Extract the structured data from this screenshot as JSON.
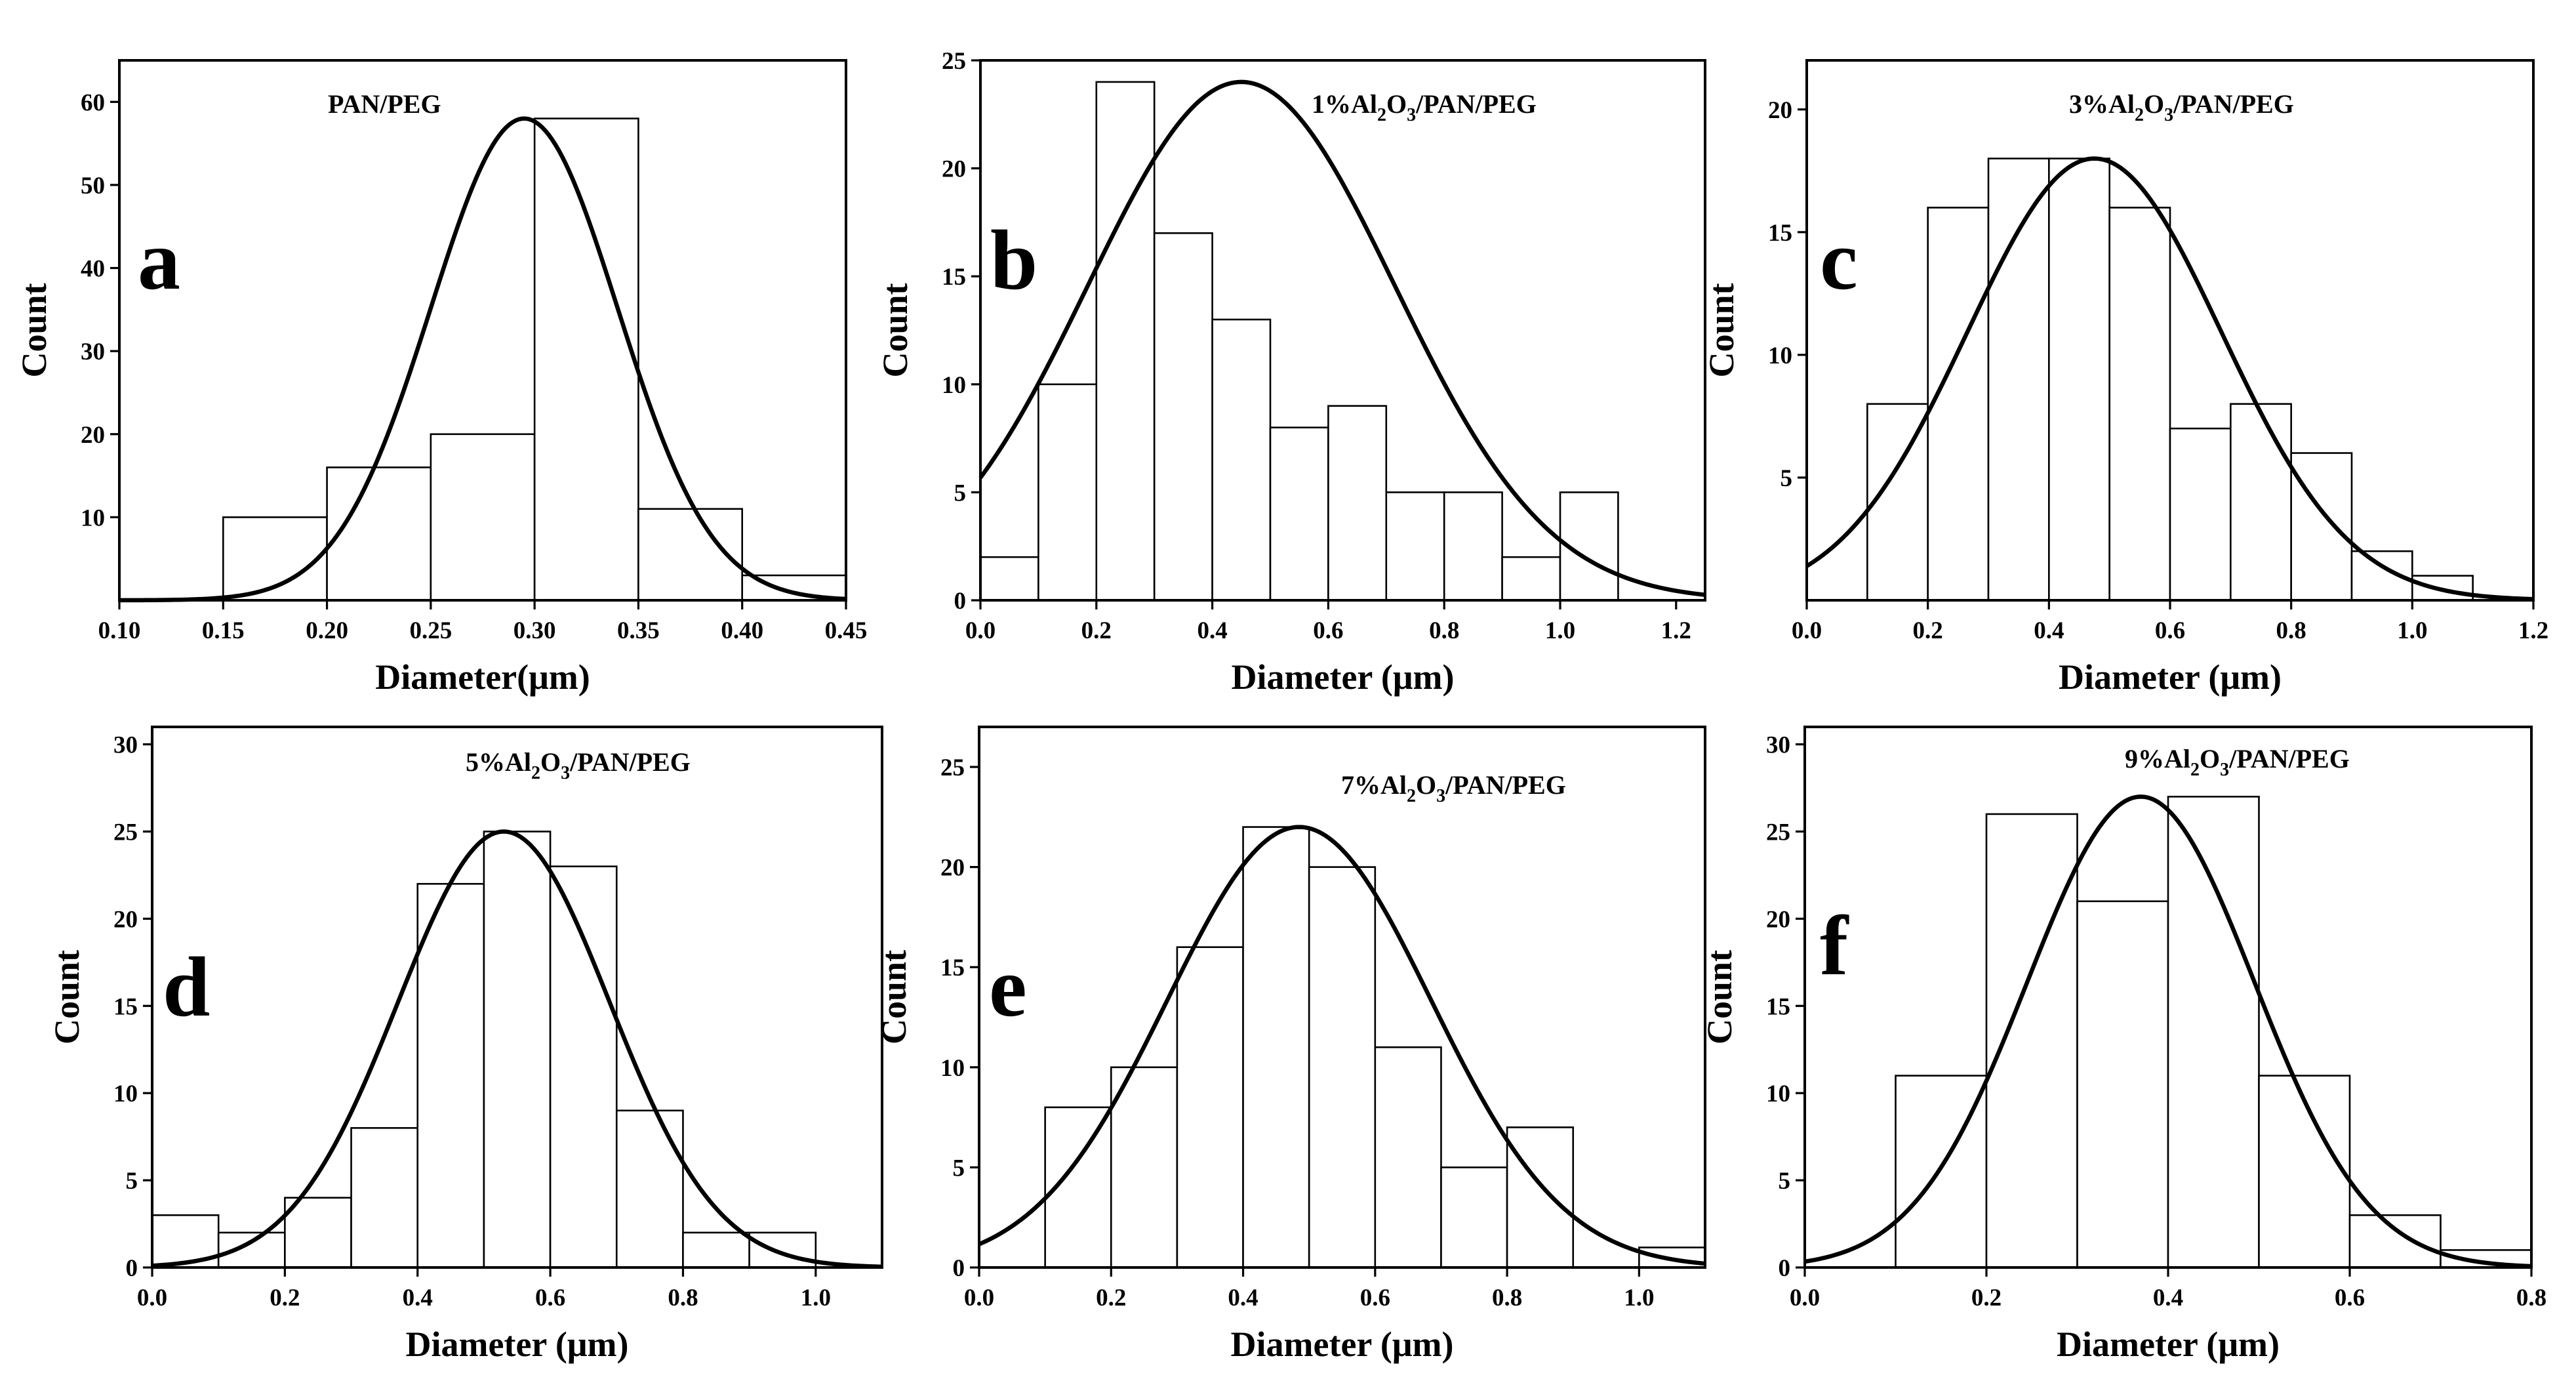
{
  "figure": {
    "kind": "diameter-distribution-histograms"
  },
  "chart_data": [
    {
      "type": "bar",
      "panel": "a",
      "title": "PAN/PEG",
      "title_parts": [
        {
          "t": "PAN/PEG",
          "sub": false
        }
      ],
      "xlabel": "Diameter(μm)",
      "ylabel": "Count",
      "xlim": [
        0.1,
        0.45
      ],
      "ylim": [
        0,
        65
      ],
      "xticks": [
        0.1,
        0.15,
        0.2,
        0.25,
        0.3,
        0.35,
        0.4,
        0.45
      ],
      "xtick_labels": [
        "0.10",
        "0.15",
        "0.20",
        "0.25",
        "0.30",
        "0.35",
        "0.40",
        "0.45"
      ],
      "yticks": [
        10,
        20,
        30,
        40,
        50,
        60
      ],
      "ytick_labels": [
        "10",
        "20",
        "30",
        "40",
        "50",
        "60"
      ],
      "bins": [
        [
          0.15,
          0.2
        ],
        [
          0.2,
          0.25
        ],
        [
          0.25,
          0.3
        ],
        [
          0.3,
          0.35
        ],
        [
          0.35,
          0.4
        ],
        [
          0.4,
          0.45
        ]
      ],
      "values": [
        10,
        16,
        20,
        58,
        11,
        3
      ],
      "fit": {
        "type": "gaussian",
        "peak": 58,
        "center": 0.295,
        "sigma": 0.045
      }
    },
    {
      "type": "bar",
      "panel": "b",
      "title": "1%Al2O3/PAN/PEG",
      "title_parts": [
        {
          "t": "1%Al",
          "sub": false
        },
        {
          "t": "2",
          "sub": true
        },
        {
          "t": "O",
          "sub": false
        },
        {
          "t": "3",
          "sub": true
        },
        {
          "t": "/PAN/PEG",
          "sub": false
        }
      ],
      "xlabel": "Diameter (μm)",
      "ylabel": "Count",
      "xlim": [
        0.0,
        1.25
      ],
      "ylim": [
        0,
        25
      ],
      "xticks": [
        0.0,
        0.2,
        0.4,
        0.6,
        0.8,
        1.0,
        1.2
      ],
      "xtick_labels": [
        "0.0",
        "0.2",
        "0.4",
        "0.6",
        "0.8",
        "1.0",
        "1.2"
      ],
      "yticks": [
        0,
        5,
        10,
        15,
        20,
        25
      ],
      "ytick_labels": [
        "0",
        "5",
        "10",
        "15",
        "20",
        "25"
      ],
      "bins": [
        [
          0.0,
          0.1
        ],
        [
          0.1,
          0.2
        ],
        [
          0.2,
          0.3
        ],
        [
          0.3,
          0.4
        ],
        [
          0.4,
          0.5
        ],
        [
          0.5,
          0.6
        ],
        [
          0.6,
          0.7
        ],
        [
          0.7,
          0.8
        ],
        [
          0.8,
          0.9
        ],
        [
          0.9,
          1.0
        ],
        [
          1.0,
          1.1
        ]
      ],
      "values": [
        2,
        10,
        24,
        17,
        13,
        8,
        9,
        5,
        5,
        2,
        5
      ],
      "fit": {
        "type": "gaussian",
        "peak": 24,
        "center": 0.45,
        "sigma": 0.265
      }
    },
    {
      "type": "bar",
      "panel": "c",
      "title": "3%Al2O3/PAN/PEG",
      "title_parts": [
        {
          "t": "3%Al",
          "sub": false
        },
        {
          "t": "2",
          "sub": true
        },
        {
          "t": "O",
          "sub": false
        },
        {
          "t": "3",
          "sub": true
        },
        {
          "t": "/PAN/PEG",
          "sub": false
        }
      ],
      "xlabel": "Diameter (μm)",
      "ylabel": "Count",
      "xlim": [
        0.0,
        1.2
      ],
      "ylim": [
        0,
        22
      ],
      "xticks": [
        0.0,
        0.2,
        0.4,
        0.6,
        0.8,
        1.0,
        1.2
      ],
      "xtick_labels": [
        "0.0",
        "0.2",
        "0.4",
        "0.6",
        "0.8",
        "1.0",
        "1.2"
      ],
      "yticks": [
        5,
        10,
        15,
        20
      ],
      "ytick_labels": [
        "5",
        "10",
        "15",
        "20"
      ],
      "bins": [
        [
          0.1,
          0.2
        ],
        [
          0.2,
          0.3
        ],
        [
          0.3,
          0.4
        ],
        [
          0.4,
          0.5
        ],
        [
          0.5,
          0.6
        ],
        [
          0.6,
          0.7
        ],
        [
          0.7,
          0.8
        ],
        [
          0.8,
          0.9
        ],
        [
          0.9,
          1.0
        ],
        [
          1.0,
          1.1
        ]
      ],
      "values": [
        8,
        16,
        18,
        18,
        16,
        7,
        8,
        6,
        2,
        1
      ],
      "fit": {
        "type": "gaussian",
        "peak": 18,
        "center": 0.475,
        "sigma": 0.21
      }
    },
    {
      "type": "bar",
      "panel": "d",
      "title": "5%Al2O3/PAN/PEG",
      "title_parts": [
        {
          "t": "5%Al",
          "sub": false
        },
        {
          "t": "2",
          "sub": true
        },
        {
          "t": "O",
          "sub": false
        },
        {
          "t": "3",
          "sub": true
        },
        {
          "t": "/PAN/PEG",
          "sub": false
        }
      ],
      "xlabel": "Diameter (μm)",
      "ylabel": "Count",
      "xlim": [
        0.0,
        1.1
      ],
      "ylim": [
        0,
        31
      ],
      "xticks": [
        0.0,
        0.2,
        0.4,
        0.6,
        0.8,
        1.0
      ],
      "xtick_labels": [
        "0.0",
        "0.2",
        "0.4",
        "0.6",
        "0.8",
        "1.0"
      ],
      "yticks": [
        0,
        5,
        10,
        15,
        20,
        25,
        30
      ],
      "ytick_labels": [
        "0",
        "5",
        "10",
        "15",
        "20",
        "25",
        "30"
      ],
      "bins": [
        [
          0.0,
          0.1
        ],
        [
          0.1,
          0.2
        ],
        [
          0.2,
          0.3
        ],
        [
          0.3,
          0.4
        ],
        [
          0.4,
          0.5
        ],
        [
          0.5,
          0.6
        ],
        [
          0.6,
          0.7
        ],
        [
          0.7,
          0.8
        ],
        [
          0.8,
          0.9
        ],
        [
          0.9,
          1.0
        ]
      ],
      "values": [
        3,
        2,
        4,
        8,
        22,
        25,
        23,
        9,
        2,
        2
      ],
      "fit": {
        "type": "gaussian",
        "peak": 25,
        "center": 0.53,
        "sigma": 0.16
      }
    },
    {
      "type": "bar",
      "panel": "e",
      "title": "7%Al2O3/PAN/PEG",
      "title_parts": [
        {
          "t": "7%Al",
          "sub": false
        },
        {
          "t": "2",
          "sub": true
        },
        {
          "t": "O",
          "sub": false
        },
        {
          "t": "3",
          "sub": true
        },
        {
          "t": "/PAN/PEG",
          "sub": false
        }
      ],
      "xlabel": "Diameter (μm)",
      "ylabel": "Count",
      "xlim": [
        0.0,
        1.1
      ],
      "ylim": [
        0,
        27
      ],
      "xticks": [
        0.0,
        0.2,
        0.4,
        0.6,
        0.8,
        1.0
      ],
      "xtick_labels": [
        "0.0",
        "0.2",
        "0.4",
        "0.6",
        "0.8",
        "1.0"
      ],
      "yticks": [
        0,
        5,
        10,
        15,
        20,
        25
      ],
      "ytick_labels": [
        "0",
        "5",
        "10",
        "15",
        "20",
        "25"
      ],
      "bins": [
        [
          0.1,
          0.2
        ],
        [
          0.2,
          0.3
        ],
        [
          0.3,
          0.4
        ],
        [
          0.4,
          0.5
        ],
        [
          0.5,
          0.6
        ],
        [
          0.6,
          0.7
        ],
        [
          0.7,
          0.8
        ],
        [
          0.8,
          0.9
        ],
        [
          1.0,
          1.1
        ]
      ],
      "values": [
        8,
        10,
        16,
        22,
        20,
        11,
        5,
        7,
        1
      ],
      "fit": {
        "type": "gaussian",
        "peak": 22,
        "center": 0.485,
        "sigma": 0.2
      }
    },
    {
      "type": "bar",
      "panel": "f",
      "title": "9%Al2O3/PAN/PEG",
      "title_parts": [
        {
          "t": "9%Al",
          "sub": false
        },
        {
          "t": "2",
          "sub": true
        },
        {
          "t": "O",
          "sub": false
        },
        {
          "t": "3",
          "sub": true
        },
        {
          "t": "/PAN/PEG",
          "sub": false
        }
      ],
      "xlabel": "Diameter (μm)",
      "ylabel": "Count",
      "xlim": [
        0.0,
        0.8
      ],
      "ylim": [
        0,
        31
      ],
      "xticks": [
        0.0,
        0.2,
        0.4,
        0.6,
        0.8
      ],
      "xtick_labels": [
        "0.0",
        "0.2",
        "0.4",
        "0.6",
        "0.8"
      ],
      "yticks": [
        0,
        5,
        10,
        15,
        20,
        25,
        30
      ],
      "ytick_labels": [
        "0",
        "5",
        "10",
        "15",
        "20",
        "25",
        "30"
      ],
      "bins": [
        [
          0.1,
          0.2
        ],
        [
          0.2,
          0.3
        ],
        [
          0.3,
          0.4
        ],
        [
          0.4,
          0.5
        ],
        [
          0.5,
          0.6
        ],
        [
          0.6,
          0.7
        ],
        [
          0.7,
          0.8
        ]
      ],
      "values": [
        11,
        26,
        21,
        27,
        11,
        3,
        1
      ],
      "fit": {
        "type": "gaussian",
        "peak": 27,
        "center": 0.37,
        "sigma": 0.125
      }
    }
  ]
}
